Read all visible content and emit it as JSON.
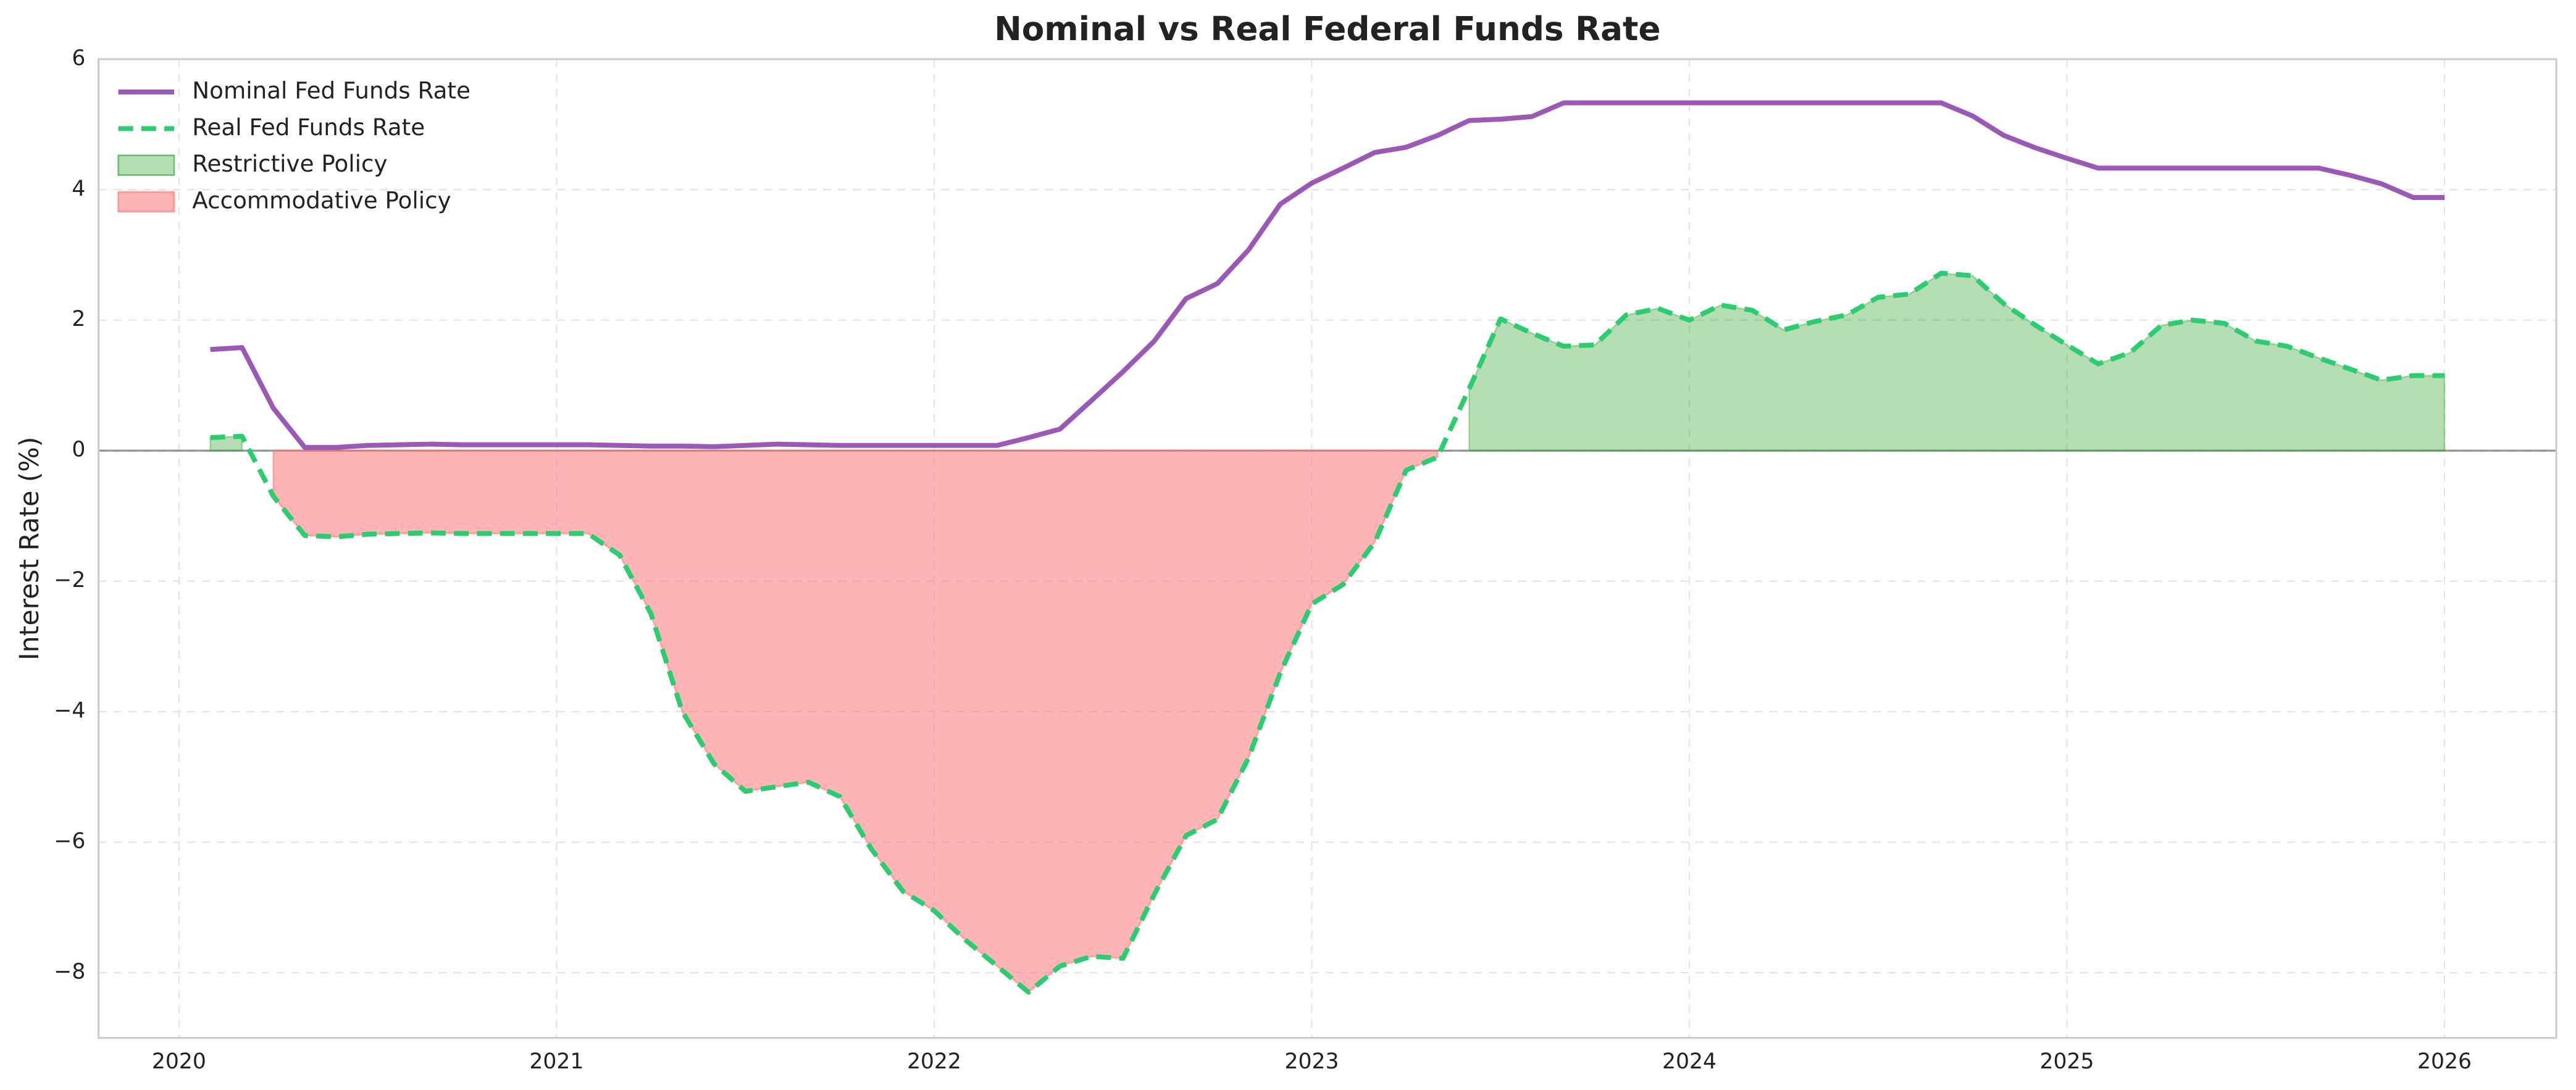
{
  "chart_data": {
    "type": "line",
    "title": "Nominal vs Real Federal Funds Rate",
    "y_label": "Interest Rate (%)",
    "x": [
      2020.083,
      2020.167,
      2020.25,
      2020.333,
      2020.417,
      2020.5,
      2020.583,
      2020.667,
      2020.75,
      2020.833,
      2020.917,
      2021,
      2021.083,
      2021.167,
      2021.25,
      2021.333,
      2021.417,
      2021.5,
      2021.583,
      2021.667,
      2021.75,
      2021.833,
      2021.917,
      2022,
      2022.083,
      2022.167,
      2022.25,
      2022.333,
      2022.417,
      2022.5,
      2022.583,
      2022.667,
      2022.75,
      2022.833,
      2022.917,
      2023,
      2023.083,
      2023.167,
      2023.25,
      2023.333,
      2023.417,
      2023.5,
      2023.583,
      2023.667,
      2023.75,
      2023.833,
      2023.917,
      2024,
      2024.083,
      2024.167,
      2024.25,
      2024.333,
      2024.417,
      2024.5,
      2024.583,
      2024.667,
      2024.75,
      2024.833,
      2024.917,
      2025,
      2025.083,
      2025.167,
      2025.25,
      2025.333,
      2025.417,
      2025.5,
      2025.583,
      2025.667,
      2025.75,
      2025.833,
      2025.917,
      2026
    ],
    "series": [
      {
        "name": "Nominal Fed Funds Rate",
        "color": "#9b59b6",
        "dash": false,
        "values": [
          1.55,
          1.58,
          0.65,
          0.05,
          0.05,
          0.08,
          0.09,
          0.1,
          0.09,
          0.09,
          0.09,
          0.09,
          0.09,
          0.08,
          0.07,
          0.07,
          0.06,
          0.08,
          0.1,
          0.09,
          0.08,
          0.08,
          0.08,
          0.08,
          0.08,
          0.08,
          0.2,
          0.33,
          0.77,
          1.21,
          1.68,
          2.33,
          2.56,
          3.08,
          3.78,
          4.1,
          4.33,
          4.57,
          4.65,
          4.83,
          5.06,
          5.08,
          5.12,
          5.33,
          5.33,
          5.33,
          5.33,
          5.33,
          5.33,
          5.33,
          5.33,
          5.33,
          5.33,
          5.33,
          5.33,
          5.33,
          5.13,
          4.83,
          4.64,
          4.48,
          4.33,
          4.33,
          4.33,
          4.33,
          4.33,
          4.33,
          4.33,
          4.33,
          4.22,
          4.09,
          3.88,
          3.88
        ]
      },
      {
        "name": "Real Fed Funds Rate",
        "color": "#2ecc71",
        "dash": true,
        "values": [
          0.2,
          0.22,
          -0.7,
          -1.3,
          -1.32,
          -1.28,
          -1.27,
          -1.26,
          -1.27,
          -1.27,
          -1.27,
          -1.27,
          -1.27,
          -1.6,
          -2.5,
          -4.0,
          -4.8,
          -5.22,
          -5.15,
          -5.08,
          -5.3,
          -6.1,
          -6.75,
          -7.05,
          -7.5,
          -7.9,
          -8.3,
          -7.9,
          -7.75,
          -7.78,
          -6.8,
          -5.9,
          -5.65,
          -4.7,
          -3.4,
          -2.35,
          -2.05,
          -1.4,
          -0.3,
          -0.1,
          0.95,
          2.02,
          1.8,
          1.6,
          1.62,
          2.08,
          2.18,
          2.0,
          2.23,
          2.15,
          1.85,
          1.98,
          2.08,
          2.35,
          2.4,
          2.72,
          2.68,
          2.25,
          1.92,
          1.62,
          1.33,
          1.5,
          1.92,
          2.0,
          1.95,
          1.68,
          1.6,
          1.42,
          1.25,
          1.08,
          1.15,
          1.15
        ]
      }
    ],
    "fills": [
      {
        "name": "Restrictive Policy",
        "color": "#2ca02c",
        "alpha": 0.35,
        "where": "above"
      },
      {
        "name": "Accommodative Policy",
        "color": "#ff6b6b",
        "alpha": 0.5,
        "where": "below"
      }
    ],
    "hline": 0,
    "xlim": [
      2019.787,
      2026.296
    ],
    "xticks": [
      2020,
      2021,
      2022,
      2023,
      2024,
      2025,
      2026
    ],
    "ylim": [
      -9,
      6
    ],
    "yticks": [
      {
        "value": -8,
        "label": "−8"
      },
      {
        "value": -6,
        "label": "−6"
      },
      {
        "value": -4,
        "label": "−4"
      },
      {
        "value": -2,
        "label": "−2"
      },
      0,
      2,
      4,
      6
    ],
    "grid": true,
    "legend": "upper left"
  }
}
